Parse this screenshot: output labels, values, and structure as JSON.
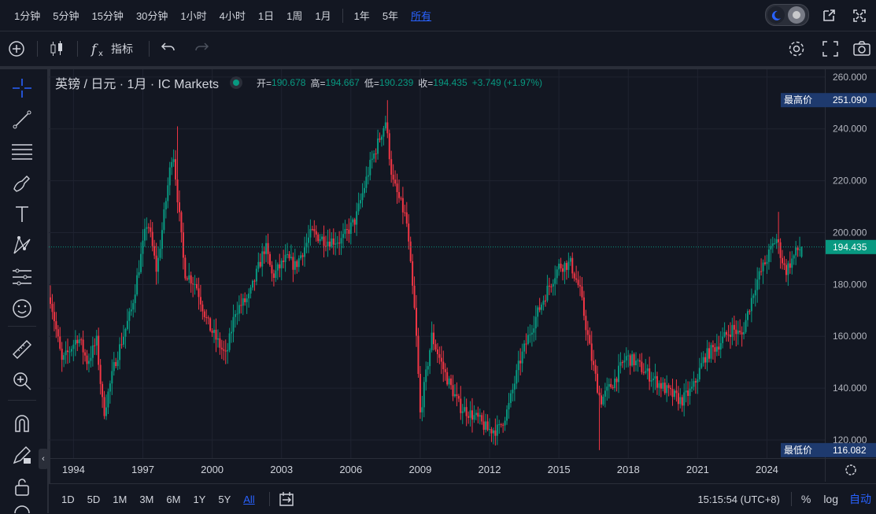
{
  "timeframes": [
    "1分钟",
    "5分钟",
    "15分钟",
    "30分钟",
    "1小时",
    "4小时",
    "1日",
    "1周",
    "1月"
  ],
  "periods": [
    "1年",
    "5年"
  ],
  "active_period": "所有",
  "toolbar": {
    "indicators_label": "指标"
  },
  "legend": {
    "symbol": "英镑 / 日元 · 1月 · IC Markets",
    "open_label": "开=",
    "open": "190.678",
    "high_label": "高=",
    "high": "194.667",
    "low_label": "低=",
    "low": "190.239",
    "close_label": "收=",
    "close": "194.435",
    "change": "+3.749 (+1.97%)"
  },
  "badges": {
    "high_label": "最高价",
    "high_value": "251.090",
    "low_label": "最低价",
    "low_value": "116.082",
    "last_value": "194.435"
  },
  "ranges": [
    "1D",
    "5D",
    "1M",
    "3M",
    "6M",
    "1Y",
    "5Y"
  ],
  "active_range": "All",
  "footer": {
    "time": "15:15:54 (UTC+8)",
    "percent": "%",
    "log": "log",
    "auto": "自动"
  },
  "colors": {
    "up": "#089981",
    "down": "#f23645",
    "accent": "#2962ff",
    "badge": "#1e3a6e"
  },
  "chart_data": {
    "type": "candlestick",
    "title": "英镑 / 日元 · 1月 · IC Markets",
    "yticks": [
      120,
      140,
      160,
      180,
      200,
      220,
      240,
      260
    ],
    "ytick_labels": [
      "120.000",
      "140.000",
      "160.000",
      "180.000",
      "200.000",
      "220.000",
      "240.000",
      "260.000"
    ],
    "ylim": [
      113,
      263
    ],
    "xlim": [
      1993.0,
      2026.3
    ],
    "xticks": [
      1994,
      1997,
      2000,
      2003,
      2006,
      2009,
      2012,
      2015,
      2018,
      2021,
      2024
    ],
    "xtick_labels": [
      "1994",
      "1997",
      "2000",
      "2003",
      "2006",
      "2009",
      "2012",
      "2015",
      "2018",
      "2021",
      "2024"
    ],
    "anchors": [
      [
        1993.0,
        175
      ],
      [
        1993.5,
        150
      ],
      [
        1994.2,
        160
      ],
      [
        1994.6,
        150
      ],
      [
        1995.0,
        158
      ],
      [
        1995.3,
        130
      ],
      [
        1995.8,
        150
      ],
      [
        1996.5,
        170
      ],
      [
        1997.2,
        205
      ],
      [
        1997.6,
        185
      ],
      [
        1998.3,
        233
      ],
      [
        1998.8,
        185
      ],
      [
        1999.3,
        180
      ],
      [
        1999.8,
        165
      ],
      [
        2000.6,
        152
      ],
      [
        2001.0,
        170
      ],
      [
        2001.6,
        175
      ],
      [
        2002.3,
        195
      ],
      [
        2002.6,
        183
      ],
      [
        2003.2,
        190
      ],
      [
        2003.6,
        187
      ],
      [
        2004.3,
        200
      ],
      [
        2004.9,
        197
      ],
      [
        2005.6,
        197
      ],
      [
        2006.2,
        205
      ],
      [
        2006.8,
        225
      ],
      [
        2007.5,
        243
      ],
      [
        2007.8,
        220
      ],
      [
        2008.4,
        205
      ],
      [
        2008.8,
        165
      ],
      [
        2009.0,
        130
      ],
      [
        2009.5,
        160
      ],
      [
        2010.1,
        145
      ],
      [
        2010.7,
        133
      ],
      [
        2011.5,
        128
      ],
      [
        2011.9,
        124
      ],
      [
        2012.4,
        124
      ],
      [
        2012.8,
        132
      ],
      [
        2013.3,
        150
      ],
      [
        2013.8,
        163
      ],
      [
        2014.5,
        178
      ],
      [
        2015.0,
        187
      ],
      [
        2015.5,
        188
      ],
      [
        2015.9,
        178
      ],
      [
        2016.4,
        152
      ],
      [
        2016.8,
        135
      ],
      [
        2017.4,
        143
      ],
      [
        2017.9,
        152
      ],
      [
        2018.3,
        150
      ],
      [
        2018.9,
        145
      ],
      [
        2019.3,
        142
      ],
      [
        2019.8,
        138
      ],
      [
        2020.3,
        135
      ],
      [
        2020.8,
        140
      ],
      [
        2021.3,
        152
      ],
      [
        2021.9,
        157
      ],
      [
        2022.5,
        163
      ],
      [
        2022.9,
        160
      ],
      [
        2023.5,
        180
      ],
      [
        2024.0,
        190
      ],
      [
        2024.4,
        198
      ],
      [
        2024.8,
        185
      ],
      [
        2025.3,
        193
      ],
      [
        2025.5,
        194.4
      ]
    ],
    "all_time_high": 251.09,
    "all_time_low": 116.082,
    "last": 194.435
  }
}
